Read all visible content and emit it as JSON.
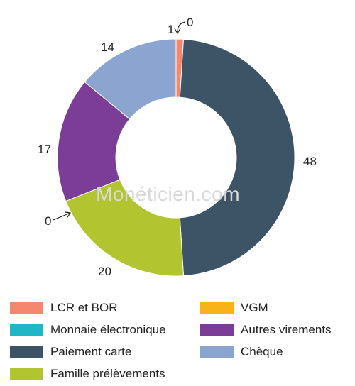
{
  "chart_data": {
    "type": "donut",
    "series": [
      {
        "name": "LCR et BOR",
        "value": 1,
        "color": "#f4876e"
      },
      {
        "name": "VGM",
        "value": 0,
        "color": "#f9b218"
      },
      {
        "name": "Paiement carte",
        "value": 48,
        "color": "#3d5366"
      },
      {
        "name": "Famille prélèvements",
        "value": 20,
        "color": "#b2c42f"
      },
      {
        "name": "Monnaie électronique",
        "value": 0,
        "color": "#1fb6c6"
      },
      {
        "name": "Autres virements",
        "value": 17,
        "color": "#7c3d98"
      },
      {
        "name": "Chèque",
        "value": 14,
        "color": "#8ca4d0"
      }
    ],
    "data_labels": {
      "lcr": "1",
      "vgm": "0",
      "carte": "48",
      "prelev": "20",
      "monnaie": "0",
      "virements": "17",
      "cheque": "14"
    }
  },
  "legend": {
    "col1": [
      {
        "label": "LCR et BOR",
        "color": "#f4876e"
      },
      {
        "label": "Monnaie électronique",
        "color": "#1fb6c6"
      },
      {
        "label": "Paiement carte",
        "color": "#3d5366"
      },
      {
        "label": "Famille prélèvements",
        "color": "#b2c42f"
      }
    ],
    "col2": [
      {
        "label": "VGM",
        "color": "#f9b218"
      },
      {
        "label": "Autres virements",
        "color": "#7c3d98"
      },
      {
        "label": "Chèque",
        "color": "#8ca4d0"
      }
    ]
  },
  "watermark": "Monéticien.com"
}
